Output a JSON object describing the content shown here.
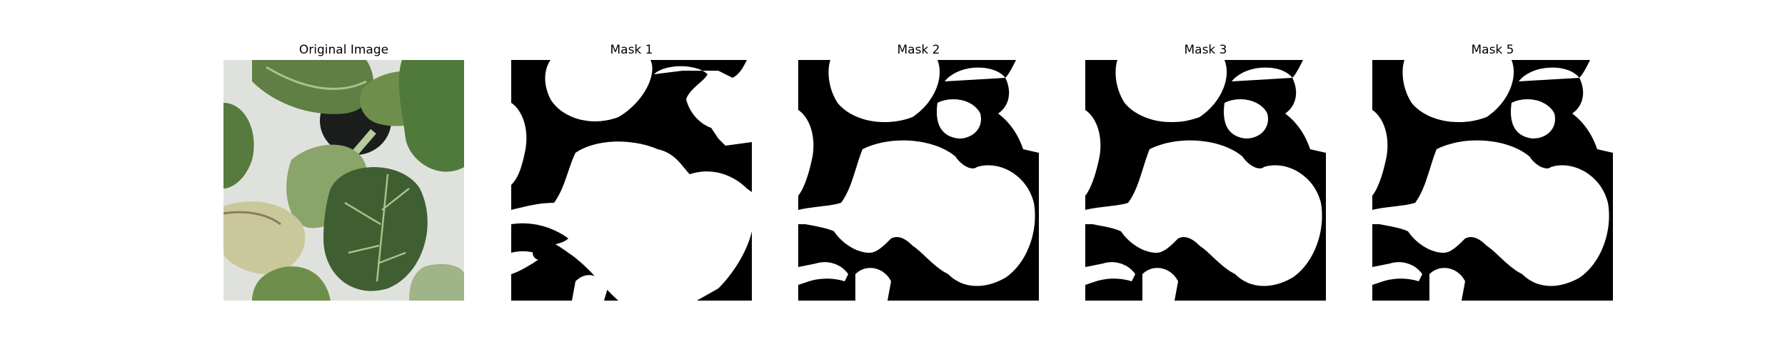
{
  "panels": [
    {
      "title": "Original Image",
      "kind": "photo"
    },
    {
      "title": "Mask 1",
      "kind": "mask"
    },
    {
      "title": "Mask 2",
      "kind": "mask"
    },
    {
      "title": "Mask 3",
      "kind": "mask"
    },
    {
      "title": "Mask 5",
      "kind": "mask"
    }
  ],
  "colors": {
    "mask_background": "#000000",
    "mask_foreground": "#ffffff",
    "leaf_dark": "#3f5f32",
    "leaf_mid": "#5f7f45",
    "leaf_light": "#8aa56a",
    "leaf_yellowed": "#c9c89b",
    "pot_background": "#dfe2dc",
    "pot": "#1b1e1d"
  }
}
